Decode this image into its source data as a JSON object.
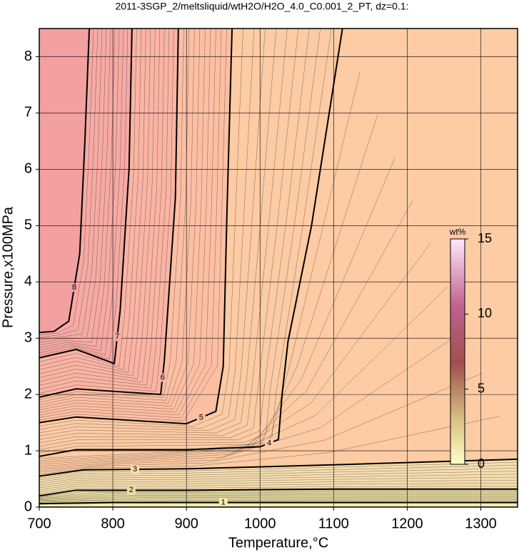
{
  "chart_data": {
    "type": "contour",
    "title": "2011-3SGP_2/meltsliquid/wtH2O/H2O_4.0_C0.001_2_PT, dz=0.1:",
    "x_label": "Temperature,°C",
    "y_label": "Pressure,x100MPa",
    "xlim": [
      700,
      1350
    ],
    "ylim": [
      0,
      8.5
    ],
    "xticks": [
      700,
      800,
      900,
      1000,
      1100,
      1200,
      1300
    ],
    "yticks": [
      0,
      1,
      2,
      3,
      4,
      5,
      6,
      7,
      8
    ],
    "grid": true,
    "background": "#fdcba4",
    "colorbar": {
      "label": "wt%",
      "lim": [
        0,
        15
      ],
      "ticks": [
        0,
        5,
        10,
        15
      ]
    },
    "contours": [
      {
        "level": 1,
        "color": "#f1ecb0",
        "x": [
          700,
          800,
          900,
          1000,
          1100,
          1200,
          1350
        ],
        "y": [
          0.06,
          0.08,
          0.08,
          0.08,
          0.08,
          0.08,
          0.08
        ]
      },
      {
        "level": 2,
        "color": "#ece0a6",
        "x": [
          700,
          750,
          900,
          1100,
          1350
        ],
        "y": [
          0.2,
          0.3,
          0.3,
          0.32,
          0.32
        ]
      },
      {
        "level": 3,
        "color": "#f6deb0",
        "x": [
          700,
          760,
          900,
          1100,
          1350
        ],
        "y": [
          0.55,
          0.66,
          0.68,
          0.75,
          0.85
        ]
      },
      {
        "level": 4,
        "color": "#fdcba4",
        "x": [
          700,
          750,
          900,
          1000,
          1025,
          1030,
          1038,
          1070,
          1112
        ],
        "y": [
          0.9,
          1.02,
          1.02,
          1.07,
          1.2,
          2.0,
          2.94,
          5.0,
          8.5
        ]
      },
      {
        "level": 5,
        "color": "#fcbfa4",
        "x": [
          700,
          750,
          900,
          940,
          950,
          955,
          962
        ],
        "y": [
          1.5,
          1.6,
          1.48,
          1.7,
          2.5,
          5.2,
          8.5
        ]
      },
      {
        "level": 6,
        "color": "#f9b4a4",
        "x": [
          700,
          750,
          865,
          870,
          885,
          889
        ],
        "y": [
          1.95,
          2.1,
          2.0,
          2.6,
          5.5,
          8.5
        ]
      },
      {
        "level": 7,
        "color": "#f6aaa4",
        "x": [
          700,
          750,
          802,
          810,
          822,
          826
        ],
        "y": [
          2.65,
          2.8,
          2.55,
          3.5,
          6,
          8.5
        ]
      },
      {
        "level": 8,
        "color": "#f3a0a0",
        "x": [
          700,
          720,
          740,
          755,
          762,
          768
        ],
        "y": [
          3.1,
          3.12,
          3.3,
          4.5,
          6.5,
          8.5
        ]
      }
    ]
  }
}
